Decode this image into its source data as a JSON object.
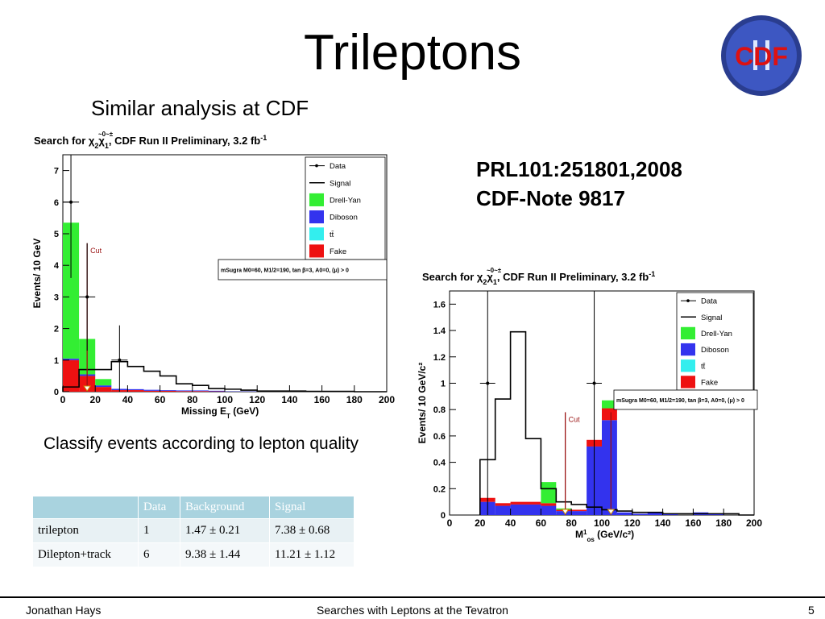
{
  "slide": {
    "title": "Trileptons",
    "subtitle": "Similar analysis at CDF",
    "refs": [
      "PRL101:251801,2008",
      "CDF-Note 9817"
    ],
    "classify_note": "Classify events according to lepton quality",
    "logo_text": "CDF",
    "logo_mark": "II"
  },
  "table": {
    "headers": [
      "",
      "Data",
      "Background",
      "Signal"
    ],
    "rows": [
      [
        "trilepton",
        "1",
        "1.47 ± 0.21",
        "7.38 ± 0.68"
      ],
      [
        "Dilepton+track",
        "6",
        "9.38 ± 1.44",
        "11.21 ± 1.12"
      ]
    ]
  },
  "footer": {
    "author": "Jonathan Hays",
    "center": "Searches with Leptons at the Tevatron",
    "page": "5"
  },
  "colors": {
    "drell_yan": "#33ee33",
    "diboson": "#3333ee",
    "ttbar": "#33eeee",
    "fake": "#ee1111",
    "cut": "#991111",
    "table_header": "#a9d3df"
  },
  "chart_data": [
    {
      "type": "bar",
      "title_parts": [
        "Search for ",
        "χ",
        "2",
        "χ",
        "1",
        ", CDF Run II Preliminary, 3.2 fb",
        "-1"
      ],
      "title_accents": [
        "~0",
        "~±"
      ],
      "xlabel_main": "Missing E",
      "xlabel_sub": "T",
      "xlabel_unit": " (GeV)",
      "ylabel": "Events/ 10 GeV",
      "xlim": [
        0,
        200
      ],
      "ylim": [
        0,
        7.5
      ],
      "xticks": [
        "0",
        "20",
        "40",
        "60",
        "80",
        "100",
        "120",
        "140",
        "160",
        "180",
        "200"
      ],
      "yticks": [
        "0",
        "1",
        "2",
        "3",
        "4",
        "5",
        "6",
        "7"
      ],
      "bin_edges": [
        0,
        10,
        20,
        30,
        40,
        50,
        60,
        70,
        80,
        90,
        100,
        110,
        120,
        130,
        140,
        150,
        160,
        170,
        180,
        190,
        200
      ],
      "stack": [
        {
          "name": "Fake",
          "color": "#ee1111",
          "values": [
            1.0,
            0.5,
            0.15,
            0.05,
            0.05,
            0.03,
            0.03,
            0.02,
            0.02,
            0.01,
            0,
            0,
            0,
            0,
            0,
            0,
            0,
            0,
            0,
            0
          ]
        },
        {
          "name": "Diboson",
          "color": "#3333ee",
          "values": [
            0.05,
            0.05,
            0.05,
            0.04,
            0.03,
            0.03,
            0.02,
            0.02,
            0.02,
            0.02,
            0.01,
            0.01,
            0.01,
            0,
            0,
            0,
            0,
            0,
            0,
            0
          ]
        },
        {
          "name": "tt̄",
          "color": "#33eeee",
          "values": [
            0,
            0,
            0,
            0,
            0,
            0,
            0,
            0,
            0,
            0,
            0,
            0,
            0,
            0,
            0,
            0,
            0,
            0,
            0,
            0
          ]
        },
        {
          "name": "Drell-Yan",
          "color": "#33ee33",
          "values": [
            4.3,
            1.12,
            0.2,
            0,
            0,
            0,
            0,
            0,
            0,
            0,
            0,
            0,
            0,
            0,
            0,
            0,
            0,
            0,
            0,
            0
          ]
        }
      ],
      "signal": {
        "name": "Signal",
        "values": [
          0.15,
          0.7,
          0.7,
          0.95,
          0.8,
          0.65,
          0.5,
          0.25,
          0.2,
          0.1,
          0.08,
          0.05,
          0.02,
          0.02,
          0.02,
          0.01,
          0.01,
          0.01,
          0,
          0
        ]
      },
      "data": {
        "name": "Data",
        "x": [
          5,
          15,
          35
        ],
        "y": [
          6,
          3,
          1
        ],
        "yerr": [
          2.4,
          1.7,
          1.1
        ]
      },
      "cuts": [
        {
          "x": 15,
          "y_top": 4.7,
          "label": "Cut"
        }
      ],
      "annotation": "mSugra M0=60, M1/2=190, tan β=3, A0=0, (μ) > 0",
      "legend": [
        "Data",
        "Signal",
        "Drell-Yan",
        "Diboson",
        "tt̄",
        "Fake"
      ],
      "legend_position": "top-right"
    },
    {
      "type": "bar",
      "title_parts": [
        "Search for ",
        "χ",
        "2",
        "χ",
        "1",
        ", CDF Run II Preliminary, 3.2 fb",
        "-1"
      ],
      "title_accents": [
        "~0",
        "~±"
      ],
      "xlabel_main": "M",
      "xlabel_sub": "os",
      "xlabel_sup": "1",
      "xlabel_unit": " (GeV/c²)",
      "ylabel": "Events/ 10 GeV/c²",
      "xlim": [
        0,
        200
      ],
      "ylim": [
        0,
        1.7
      ],
      "xticks": [
        "0",
        "20",
        "40",
        "60",
        "80",
        "100",
        "120",
        "140",
        "160",
        "180",
        "200"
      ],
      "yticks": [
        "0",
        "0.2",
        "0.4",
        "0.6",
        "0.8",
        "1",
        "1.2",
        "1.4",
        "1.6"
      ],
      "bin_edges": [
        20,
        30,
        40,
        50,
        60,
        70,
        80,
        90,
        100,
        110,
        120,
        130,
        140,
        150,
        160,
        170,
        180,
        190,
        200
      ],
      "stack": [
        {
          "name": "Diboson",
          "color": "#3333ee",
          "values": [
            0.1,
            0.07,
            0.08,
            0.08,
            0.07,
            0.03,
            0.03,
            0.52,
            0.72,
            0.02,
            0.01,
            0.02,
            0.01,
            0,
            0.02,
            0.01,
            0,
            0
          ]
        },
        {
          "name": "Fake",
          "color": "#ee1111",
          "values": [
            0.03,
            0.02,
            0.02,
            0.02,
            0.02,
            0.01,
            0.01,
            0.05,
            0.09,
            0,
            0,
            0,
            0,
            0,
            0,
            0,
            0,
            0
          ]
        },
        {
          "name": "tt̄",
          "color": "#33eeee",
          "values": [
            0,
            0,
            0,
            0,
            0,
            0,
            0,
            0,
            0,
            0,
            0,
            0,
            0,
            0,
            0,
            0,
            0,
            0
          ]
        },
        {
          "name": "Drell-Yan",
          "color": "#33ee33",
          "values": [
            0,
            0,
            0,
            0,
            0.16,
            0.01,
            0,
            0,
            0.06,
            0,
            0,
            0,
            0,
            0,
            0,
            0,
            0,
            0
          ]
        }
      ],
      "signal": {
        "name": "Signal",
        "values": [
          0.42,
          0.88,
          1.39,
          0.58,
          0.2,
          0.1,
          0.08,
          0.06,
          0.04,
          0.03,
          0.02,
          0.02,
          0.01,
          0.01,
          0.01,
          0.01,
          0.01,
          0
        ]
      },
      "data": {
        "name": "Data",
        "x": [
          25,
          95
        ],
        "y": [
          1,
          1
        ],
        "yerr": [
          1.65,
          1.65
        ]
      },
      "cuts": [
        {
          "x": 76,
          "y_top": 0.78,
          "label": "Cut"
        },
        {
          "x": 106,
          "y_top": 0.78,
          "label": ""
        }
      ],
      "annotation": "mSugra M0=60, M1/2=190, tan β=3, A0=0, (μ) > 0",
      "legend": [
        "Data",
        "Signal",
        "Drell-Yan",
        "Diboson",
        "tt̄",
        "Fake"
      ],
      "legend_position": "top-right"
    }
  ]
}
